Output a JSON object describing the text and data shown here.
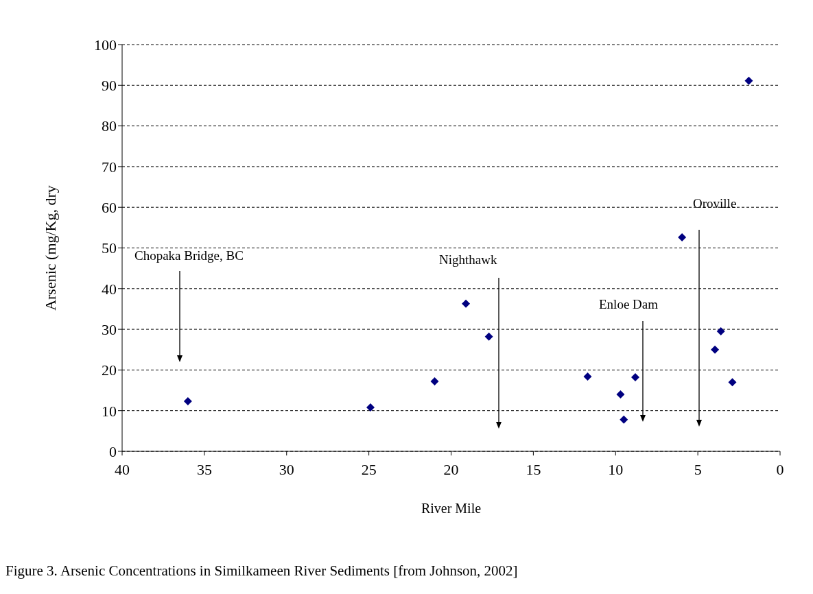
{
  "chart_data": {
    "type": "scatter",
    "xlabel": "River Mile",
    "ylabel": "Arsenic (mg/Kg, dry",
    "x": [
      36.0,
      24.9,
      21.0,
      19.1,
      17.7,
      11.7,
      9.7,
      9.5,
      8.8,
      5.96,
      3.96,
      3.6,
      2.9,
      1.9
    ],
    "values": [
      12.3,
      10.8,
      17.2,
      36.3,
      28.2,
      18.4,
      14.0,
      7.8,
      18.2,
      52.6,
      25.0,
      29.5,
      17.0,
      91.1
    ],
    "color": "#000080",
    "marker": "diamond",
    "grid": "y",
    "xlim": [
      40,
      0
    ],
    "xticks": [
      40,
      35,
      30,
      25,
      20,
      15,
      10,
      5,
      0
    ],
    "ylim": [
      0,
      100
    ],
    "yticks": [
      0,
      10,
      20,
      30,
      40,
      50,
      60,
      70,
      80,
      90,
      100
    ],
    "annotations": [
      "Chopaka Bridge, BC",
      "Nighthawk",
      "Enloe Dam",
      "Oroville",
      "Figure 3. Arsenic Concentrations in Similkameen River Sediments [from Johnson, 2002]"
    ]
  }
}
